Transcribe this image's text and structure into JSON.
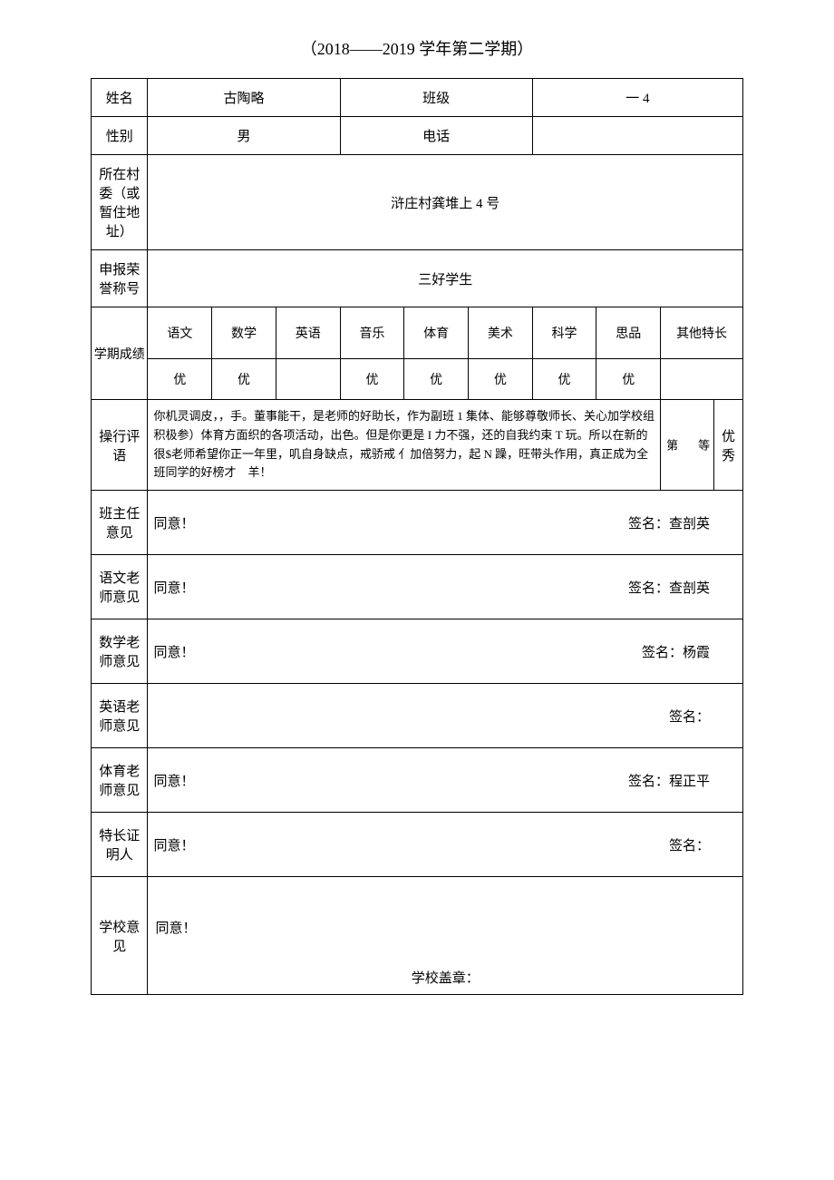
{
  "title": "（2018——2019 学年第二学期）",
  "fields": {
    "name_label": "姓名",
    "name_value": "古陶略",
    "class_label": "班级",
    "class_value": "一 4",
    "gender_label": "性别",
    "gender_value": "男",
    "phone_label": "电话",
    "phone_value": "",
    "address_label": "所在村委（或暂住地址）",
    "address_value": "浒庄村龚堆上 4 号",
    "honor_label": "申报荣誉称号",
    "honor_value": "三好学生",
    "grades_label": "学期成绩",
    "talent_label": "其他特长",
    "talent_value": "",
    "conduct_label": "操行评语",
    "conduct_text1": "你机灵调皮，，手。董事能干，是老师的好助长，作为副班 1 集体、能够尊敬师长、关心加学校组积极参）体育方面织的各项活动，出色。但是你更是 I 力不强，还的自我约束 T 玩。所以在新的很$老师希望你正一年里，叽自身缺点，戒骄戒 亻加倍努力，起 N 躁，旺带头作用，真正成为全班同学的好榜才　羊！",
    "conduct_rank_top": "等",
    "conduct_rank_bottom": "第",
    "conduct_grade": "优秀"
  },
  "subjects": {
    "chinese": "语文",
    "math": "数学",
    "english": "英语",
    "music": "音乐",
    "pe": "体育",
    "art": "美术",
    "science": "科学",
    "morals": "思品"
  },
  "scores": {
    "chinese": "优",
    "math": "优",
    "english": "",
    "music": "优",
    "pe": "优",
    "art": "优",
    "science": "优",
    "morals": "优"
  },
  "opinions": {
    "homeroom_label": "班主任意见",
    "homeroom_text": "同意！",
    "homeroom_sign": "签名：查剖英",
    "chinese_label": "语文老师意见",
    "chinese_text": "同意！",
    "chinese_sign": "签名：查剖英",
    "math_label": "数学老师意见",
    "math_text": "同意！",
    "math_sign": "签名：杨霞",
    "english_label": "英语老师意见",
    "english_text": "",
    "english_sign": "签名：",
    "pe_label": "体育老师意见",
    "pe_text": "同意！",
    "pe_sign": "签名：程正平",
    "talent_label": "特长证明人",
    "talent_text": "同意！",
    "talent_sign": "签名：",
    "school_label": "学校意见",
    "school_text": "同意！",
    "school_stamp": "学校盖章："
  }
}
